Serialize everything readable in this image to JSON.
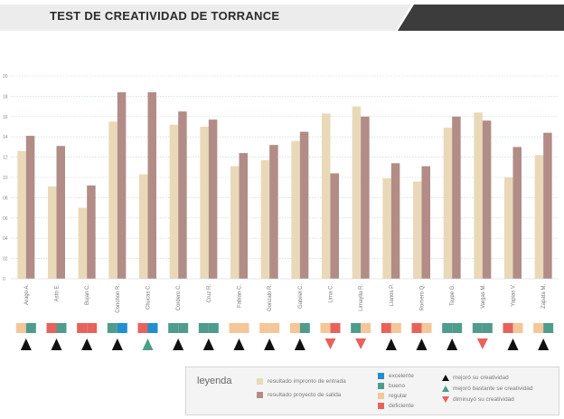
{
  "title": "TEST DE CREATIVIDAD DE TORRANCE",
  "colors": {
    "entrada": "#e9d9b8",
    "salida": "#b28c86",
    "excelente": "#1f8fd1",
    "bueno": "#4f9c8c",
    "regular": "#f4c69a",
    "deficiente": "#e8625c",
    "mejoro": "#111111",
    "mejoro_bastante": "#4f9c8c",
    "disminuyo": "#e8625c",
    "header_dark": "#3c3c3c"
  },
  "chart_data": {
    "type": "bar",
    "categories": [
      "Arago A.",
      "Asto E.",
      "Bujan C.",
      "Conchon R.",
      "Chucas C.",
      "Cordero C.",
      "Cruz R.",
      "Fabian C.",
      "Gonzalo R.",
      "Gabriel C.",
      "Lima C.",
      "Limaylla R.",
      "Llanos P.",
      "Romero Q.",
      "Taype G.",
      "Vargas M.",
      "Yapias V.",
      "Zapata M."
    ],
    "series": [
      {
        "name": "resultado impronto de entrada",
        "values": [
          12.6,
          9.1,
          7.0,
          15.5,
          10.3,
          15.2,
          15.0,
          11.1,
          11.7,
          13.6,
          16.3,
          17.0,
          9.9,
          9.6,
          14.9,
          16.4,
          10.0,
          12.2
        ]
      },
      {
        "name": "resultado proyecto de salida",
        "values": [
          14.1,
          13.1,
          9.2,
          18.4,
          18.4,
          16.5,
          15.7,
          12.4,
          13.2,
          14.5,
          10.4,
          16.0,
          11.4,
          11.1,
          16.0,
          15.6,
          13.0,
          14.4
        ]
      }
    ],
    "ylim": [
      0,
      20
    ],
    "yticks": [
      "0",
      "02",
      "04",
      "06",
      "08",
      "10",
      "12",
      "14",
      "16",
      "18",
      "20"
    ],
    "grid": true,
    "status_boxes": [
      [
        "regular",
        "bueno"
      ],
      [
        "deficiente",
        "bueno"
      ],
      [
        "deficiente",
        "deficiente"
      ],
      [
        "bueno",
        "excelente"
      ],
      [
        "deficiente",
        "excelente"
      ],
      [
        "bueno",
        "bueno"
      ],
      [
        "bueno",
        "bueno"
      ],
      [
        "regular",
        "regular"
      ],
      [
        "regular",
        "regular"
      ],
      [
        "regular",
        "bueno"
      ],
      [
        "regular",
        "deficiente"
      ],
      [
        "bueno",
        "regular"
      ],
      [
        "deficiente",
        "regular"
      ],
      [
        "deficiente",
        "regular"
      ],
      [
        "bueno",
        "bueno"
      ],
      [
        "bueno",
        "bueno"
      ],
      [
        "deficiente",
        "regular"
      ],
      [
        "regular",
        "bueno"
      ]
    ],
    "trend": [
      "mejoro",
      "mejoro",
      "mejoro",
      "mejoro",
      "mejoro_bastante",
      "mejoro",
      "mejoro",
      "mejoro",
      "mejoro",
      "mejoro",
      "disminuyo",
      "disminuyo",
      "mejoro",
      "mejoro",
      "mejoro",
      "disminuyo",
      "mejoro",
      "mejoro"
    ]
  },
  "legend": {
    "title": "leyenda",
    "entrada": "resultado impronto de entrada",
    "salida": "resultado proyecto de salida",
    "excelente": "excelente",
    "bueno": "bueno",
    "regular": "regular",
    "deficiente": "deficiente",
    "mejoro": "mejoró su creatividad",
    "mejoro_bastante": "mejoró bastante se creatividad",
    "disminuyo": "diminuyó su creatividad"
  }
}
